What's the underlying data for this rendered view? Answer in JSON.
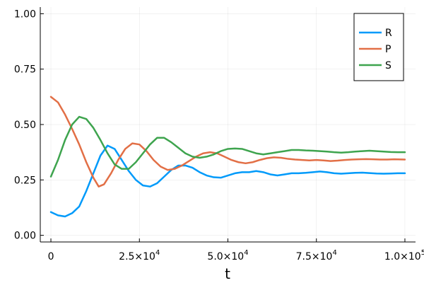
{
  "chart_data": {
    "type": "line",
    "title": "",
    "xlabel": "t",
    "ylabel": "",
    "xlim": [
      -3000,
      103000
    ],
    "ylim": [
      -0.03,
      1.03
    ],
    "grid": true,
    "legend_position": "top-right",
    "x_ticks": [
      {
        "value": 0,
        "mantissa": "0",
        "exponent": ""
      },
      {
        "value": 25000,
        "mantissa": "2.5×10",
        "exponent": "4"
      },
      {
        "value": 50000,
        "mantissa": "5.0×10",
        "exponent": "4"
      },
      {
        "value": 75000,
        "mantissa": "7.5×10",
        "exponent": "4"
      },
      {
        "value": 100000,
        "mantissa": "1.0×10",
        "exponent": "5"
      }
    ],
    "y_ticks": [
      {
        "value": 0.0,
        "label": "0.00"
      },
      {
        "value": 0.25,
        "label": "0.25"
      },
      {
        "value": 0.5,
        "label": "0.50"
      },
      {
        "value": 0.75,
        "label": "0.75"
      },
      {
        "value": 1.0,
        "label": "1.00"
      }
    ],
    "series": [
      {
        "name": "R",
        "color": "#009AFA",
        "points": [
          [
            0,
            0.105
          ],
          [
            2000,
            0.09
          ],
          [
            4000,
            0.085
          ],
          [
            6000,
            0.1
          ],
          [
            8000,
            0.13
          ],
          [
            10000,
            0.2
          ],
          [
            12000,
            0.28
          ],
          [
            14000,
            0.36
          ],
          [
            16000,
            0.405
          ],
          [
            18000,
            0.39
          ],
          [
            20000,
            0.34
          ],
          [
            22000,
            0.29
          ],
          [
            24000,
            0.25
          ],
          [
            26000,
            0.225
          ],
          [
            28000,
            0.22
          ],
          [
            30000,
            0.235
          ],
          [
            32000,
            0.265
          ],
          [
            34000,
            0.295
          ],
          [
            36000,
            0.315
          ],
          [
            38000,
            0.315
          ],
          [
            40000,
            0.305
          ],
          [
            42000,
            0.285
          ],
          [
            44000,
            0.27
          ],
          [
            46000,
            0.262
          ],
          [
            48000,
            0.26
          ],
          [
            50000,
            0.27
          ],
          [
            52000,
            0.28
          ],
          [
            54000,
            0.285
          ],
          [
            56000,
            0.285
          ],
          [
            58000,
            0.29
          ],
          [
            60000,
            0.285
          ],
          [
            62000,
            0.275
          ],
          [
            64000,
            0.27
          ],
          [
            66000,
            0.275
          ],
          [
            68000,
            0.28
          ],
          [
            70000,
            0.28
          ],
          [
            72000,
            0.282
          ],
          [
            74000,
            0.285
          ],
          [
            76000,
            0.288
          ],
          [
            78000,
            0.285
          ],
          [
            80000,
            0.28
          ],
          [
            82000,
            0.278
          ],
          [
            84000,
            0.28
          ],
          [
            86000,
            0.282
          ],
          [
            88000,
            0.283
          ],
          [
            90000,
            0.281
          ],
          [
            92000,
            0.279
          ],
          [
            94000,
            0.278
          ],
          [
            96000,
            0.279
          ],
          [
            98000,
            0.28
          ],
          [
            100000,
            0.28
          ]
        ]
      },
      {
        "name": "P",
        "color": "#E26F46",
        "points": [
          [
            0,
            0.625
          ],
          [
            2000,
            0.6
          ],
          [
            4000,
            0.545
          ],
          [
            6000,
            0.48
          ],
          [
            8000,
            0.41
          ],
          [
            10000,
            0.33
          ],
          [
            12000,
            0.26
          ],
          [
            13500,
            0.22
          ],
          [
            15000,
            0.23
          ],
          [
            17000,
            0.28
          ],
          [
            19000,
            0.34
          ],
          [
            21000,
            0.39
          ],
          [
            23000,
            0.415
          ],
          [
            25000,
            0.41
          ],
          [
            27000,
            0.38
          ],
          [
            29000,
            0.34
          ],
          [
            31000,
            0.31
          ],
          [
            33000,
            0.295
          ],
          [
            35000,
            0.3
          ],
          [
            37000,
            0.315
          ],
          [
            39000,
            0.335
          ],
          [
            41000,
            0.355
          ],
          [
            43000,
            0.37
          ],
          [
            45000,
            0.375
          ],
          [
            47000,
            0.37
          ],
          [
            49000,
            0.355
          ],
          [
            51000,
            0.34
          ],
          [
            53000,
            0.33
          ],
          [
            55000,
            0.325
          ],
          [
            57000,
            0.33
          ],
          [
            59000,
            0.34
          ],
          [
            61000,
            0.348
          ],
          [
            63000,
            0.352
          ],
          [
            65000,
            0.35
          ],
          [
            67000,
            0.345
          ],
          [
            69000,
            0.342
          ],
          [
            71000,
            0.34
          ],
          [
            73000,
            0.338
          ],
          [
            75000,
            0.34
          ],
          [
            77000,
            0.338
          ],
          [
            79000,
            0.335
          ],
          [
            81000,
            0.337
          ],
          [
            83000,
            0.34
          ],
          [
            85000,
            0.342
          ],
          [
            87000,
            0.343
          ],
          [
            89000,
            0.344
          ],
          [
            91000,
            0.343
          ],
          [
            93000,
            0.342
          ],
          [
            95000,
            0.342
          ],
          [
            97000,
            0.343
          ],
          [
            100000,
            0.342
          ]
        ]
      },
      {
        "name": "S",
        "color": "#3EA44E",
        "points": [
          [
            0,
            0.265
          ],
          [
            2000,
            0.34
          ],
          [
            4000,
            0.43
          ],
          [
            6000,
            0.5
          ],
          [
            8000,
            0.535
          ],
          [
            10000,
            0.525
          ],
          [
            12000,
            0.485
          ],
          [
            14000,
            0.43
          ],
          [
            16000,
            0.37
          ],
          [
            18000,
            0.32
          ],
          [
            20000,
            0.3
          ],
          [
            22000,
            0.3
          ],
          [
            24000,
            0.33
          ],
          [
            26000,
            0.37
          ],
          [
            28000,
            0.41
          ],
          [
            30000,
            0.44
          ],
          [
            32000,
            0.44
          ],
          [
            34000,
            0.42
          ],
          [
            36000,
            0.395
          ],
          [
            38000,
            0.37
          ],
          [
            40000,
            0.355
          ],
          [
            42000,
            0.35
          ],
          [
            44000,
            0.355
          ],
          [
            46000,
            0.365
          ],
          [
            48000,
            0.38
          ],
          [
            50000,
            0.39
          ],
          [
            52000,
            0.392
          ],
          [
            54000,
            0.39
          ],
          [
            56000,
            0.38
          ],
          [
            58000,
            0.37
          ],
          [
            60000,
            0.365
          ],
          [
            62000,
            0.37
          ],
          [
            64000,
            0.375
          ],
          [
            66000,
            0.38
          ],
          [
            68000,
            0.385
          ],
          [
            70000,
            0.385
          ],
          [
            72000,
            0.383
          ],
          [
            74000,
            0.382
          ],
          [
            76000,
            0.38
          ],
          [
            78000,
            0.378
          ],
          [
            80000,
            0.375
          ],
          [
            82000,
            0.373
          ],
          [
            84000,
            0.375
          ],
          [
            86000,
            0.378
          ],
          [
            88000,
            0.38
          ],
          [
            90000,
            0.382
          ],
          [
            92000,
            0.38
          ],
          [
            94000,
            0.378
          ],
          [
            96000,
            0.376
          ],
          [
            98000,
            0.375
          ],
          [
            100000,
            0.375
          ]
        ]
      }
    ]
  }
}
